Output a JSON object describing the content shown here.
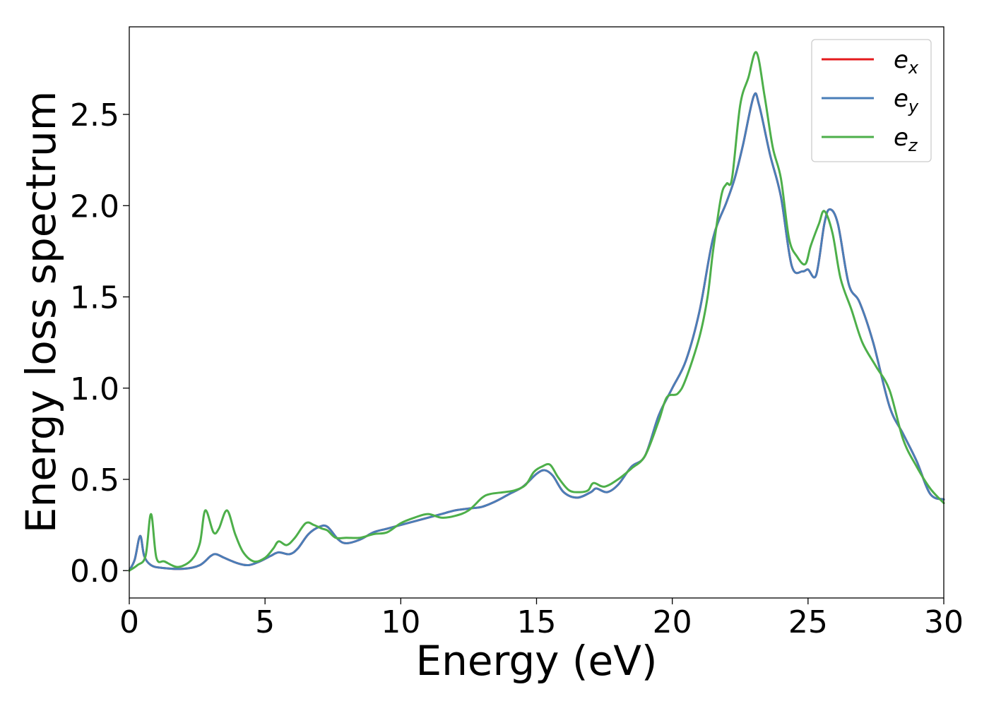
{
  "chart_data": {
    "type": "line",
    "title": "",
    "xlabel": "Energy (eV)",
    "ylabel": "Energy loss spectrum",
    "xlim": [
      0,
      30
    ],
    "ylim": [
      -0.15,
      2.98
    ],
    "x_ticks": [
      0,
      5,
      10,
      15,
      20,
      25,
      30
    ],
    "x_tick_labels": [
      "0",
      "5",
      "10",
      "15",
      "20",
      "25",
      "30"
    ],
    "y_ticks": [
      0.0,
      0.5,
      1.0,
      1.5,
      2.0,
      2.5
    ],
    "y_tick_labels": [
      "0.0",
      "0.5",
      "1.0",
      "1.5",
      "2.0",
      "2.5"
    ],
    "grid": false,
    "legend_position": "top-right",
    "series": [
      {
        "name": "e_x",
        "legend_base": "e",
        "legend_sub": "x",
        "color": "#e41a1c",
        "points": [
          [
            0,
            0.0
          ],
          [
            0.2,
            0.06
          ],
          [
            0.4,
            0.19
          ],
          [
            0.55,
            0.08
          ],
          [
            0.8,
            0.03
          ],
          [
            1.2,
            0.015
          ],
          [
            2.0,
            0.01
          ],
          [
            2.6,
            0.03
          ],
          [
            3.0,
            0.08
          ],
          [
            3.2,
            0.09
          ],
          [
            3.5,
            0.07
          ],
          [
            4.0,
            0.04
          ],
          [
            4.4,
            0.03
          ],
          [
            4.8,
            0.05
          ],
          [
            5.2,
            0.08
          ],
          [
            5.5,
            0.1
          ],
          [
            5.9,
            0.09
          ],
          [
            6.2,
            0.12
          ],
          [
            6.6,
            0.2
          ],
          [
            7.0,
            0.24
          ],
          [
            7.3,
            0.24
          ],
          [
            7.7,
            0.17
          ],
          [
            8.0,
            0.15
          ],
          [
            8.5,
            0.17
          ],
          [
            9.0,
            0.21
          ],
          [
            9.5,
            0.23
          ],
          [
            10.0,
            0.25
          ],
          [
            10.5,
            0.27
          ],
          [
            11.0,
            0.29
          ],
          [
            11.5,
            0.31
          ],
          [
            12.0,
            0.33
          ],
          [
            12.5,
            0.34
          ],
          [
            13.0,
            0.35
          ],
          [
            13.5,
            0.38
          ],
          [
            14.0,
            0.42
          ],
          [
            14.5,
            0.46
          ],
          [
            15.0,
            0.53
          ],
          [
            15.3,
            0.55
          ],
          [
            15.6,
            0.52
          ],
          [
            16.0,
            0.43
          ],
          [
            16.5,
            0.4
          ],
          [
            17.0,
            0.43
          ],
          [
            17.2,
            0.45
          ],
          [
            17.6,
            0.43
          ],
          [
            18.0,
            0.47
          ],
          [
            18.5,
            0.57
          ],
          [
            19.0,
            0.63
          ],
          [
            19.5,
            0.85
          ],
          [
            20.0,
            1.0
          ],
          [
            20.5,
            1.15
          ],
          [
            21.0,
            1.42
          ],
          [
            21.5,
            1.82
          ],
          [
            22.0,
            2.02
          ],
          [
            22.3,
            2.15
          ],
          [
            22.6,
            2.33
          ],
          [
            23.0,
            2.6
          ],
          [
            23.2,
            2.55
          ],
          [
            23.6,
            2.28
          ],
          [
            24.0,
            2.05
          ],
          [
            24.4,
            1.67
          ],
          [
            24.8,
            1.64
          ],
          [
            25.0,
            1.65
          ],
          [
            25.3,
            1.62
          ],
          [
            25.6,
            1.9
          ],
          [
            25.8,
            1.98
          ],
          [
            26.1,
            1.9
          ],
          [
            26.5,
            1.57
          ],
          [
            26.9,
            1.47
          ],
          [
            27.4,
            1.25
          ],
          [
            28.0,
            0.9
          ],
          [
            28.5,
            0.75
          ],
          [
            29.0,
            0.6
          ],
          [
            29.5,
            0.42
          ],
          [
            30.0,
            0.39
          ]
        ]
      },
      {
        "name": "e_y",
        "legend_base": "e",
        "legend_sub": "y",
        "color": "#4a7eb8",
        "points": [
          [
            0,
            0.0
          ],
          [
            0.2,
            0.06
          ],
          [
            0.4,
            0.19
          ],
          [
            0.55,
            0.08
          ],
          [
            0.8,
            0.03
          ],
          [
            1.2,
            0.015
          ],
          [
            2.0,
            0.01
          ],
          [
            2.6,
            0.03
          ],
          [
            3.0,
            0.08
          ],
          [
            3.2,
            0.09
          ],
          [
            3.5,
            0.07
          ],
          [
            4.0,
            0.04
          ],
          [
            4.4,
            0.03
          ],
          [
            4.8,
            0.05
          ],
          [
            5.2,
            0.08
          ],
          [
            5.5,
            0.1
          ],
          [
            5.9,
            0.09
          ],
          [
            6.2,
            0.12
          ],
          [
            6.6,
            0.2
          ],
          [
            7.0,
            0.24
          ],
          [
            7.3,
            0.24
          ],
          [
            7.7,
            0.17
          ],
          [
            8.0,
            0.15
          ],
          [
            8.5,
            0.17
          ],
          [
            9.0,
            0.21
          ],
          [
            9.5,
            0.23
          ],
          [
            10.0,
            0.25
          ],
          [
            10.5,
            0.27
          ],
          [
            11.0,
            0.29
          ],
          [
            11.5,
            0.31
          ],
          [
            12.0,
            0.33
          ],
          [
            12.5,
            0.34
          ],
          [
            13.0,
            0.35
          ],
          [
            13.5,
            0.38
          ],
          [
            14.0,
            0.42
          ],
          [
            14.5,
            0.46
          ],
          [
            15.0,
            0.53
          ],
          [
            15.3,
            0.55
          ],
          [
            15.6,
            0.52
          ],
          [
            16.0,
            0.43
          ],
          [
            16.5,
            0.4
          ],
          [
            17.0,
            0.43
          ],
          [
            17.2,
            0.45
          ],
          [
            17.6,
            0.43
          ],
          [
            18.0,
            0.47
          ],
          [
            18.5,
            0.57
          ],
          [
            19.0,
            0.63
          ],
          [
            19.5,
            0.85
          ],
          [
            20.0,
            1.0
          ],
          [
            20.5,
            1.15
          ],
          [
            21.0,
            1.42
          ],
          [
            21.5,
            1.82
          ],
          [
            22.0,
            2.02
          ],
          [
            22.3,
            2.15
          ],
          [
            22.6,
            2.33
          ],
          [
            23.0,
            2.6
          ],
          [
            23.2,
            2.55
          ],
          [
            23.6,
            2.28
          ],
          [
            24.0,
            2.05
          ],
          [
            24.4,
            1.67
          ],
          [
            24.8,
            1.64
          ],
          [
            25.0,
            1.65
          ],
          [
            25.3,
            1.62
          ],
          [
            25.6,
            1.9
          ],
          [
            25.8,
            1.98
          ],
          [
            26.1,
            1.9
          ],
          [
            26.5,
            1.57
          ],
          [
            26.9,
            1.47
          ],
          [
            27.4,
            1.25
          ],
          [
            28.0,
            0.9
          ],
          [
            28.5,
            0.75
          ],
          [
            29.0,
            0.6
          ],
          [
            29.5,
            0.42
          ],
          [
            30.0,
            0.39
          ]
        ]
      },
      {
        "name": "e_z",
        "legend_base": "e",
        "legend_sub": "z",
        "color": "#4daf4a",
        "points": [
          [
            0,
            0.0
          ],
          [
            0.3,
            0.03
          ],
          [
            0.6,
            0.08
          ],
          [
            0.8,
            0.31
          ],
          [
            1.0,
            0.07
          ],
          [
            1.3,
            0.05
          ],
          [
            1.8,
            0.02
          ],
          [
            2.3,
            0.06
          ],
          [
            2.6,
            0.15
          ],
          [
            2.8,
            0.33
          ],
          [
            3.1,
            0.21
          ],
          [
            3.3,
            0.23
          ],
          [
            3.6,
            0.33
          ],
          [
            3.9,
            0.2
          ],
          [
            4.2,
            0.1
          ],
          [
            4.6,
            0.05
          ],
          [
            5.0,
            0.07
          ],
          [
            5.3,
            0.12
          ],
          [
            5.5,
            0.16
          ],
          [
            5.8,
            0.14
          ],
          [
            6.1,
            0.18
          ],
          [
            6.5,
            0.26
          ],
          [
            6.8,
            0.25
          ],
          [
            7.1,
            0.23
          ],
          [
            7.3,
            0.22
          ],
          [
            7.6,
            0.18
          ],
          [
            8.0,
            0.18
          ],
          [
            8.5,
            0.18
          ],
          [
            9.0,
            0.2
          ],
          [
            9.5,
            0.21
          ],
          [
            10.0,
            0.26
          ],
          [
            10.5,
            0.29
          ],
          [
            11.0,
            0.31
          ],
          [
            11.5,
            0.29
          ],
          [
            12.0,
            0.3
          ],
          [
            12.5,
            0.33
          ],
          [
            13.0,
            0.4
          ],
          [
            13.3,
            0.42
          ],
          [
            13.8,
            0.43
          ],
          [
            14.2,
            0.44
          ],
          [
            14.6,
            0.47
          ],
          [
            14.9,
            0.54
          ],
          [
            15.2,
            0.57
          ],
          [
            15.5,
            0.58
          ],
          [
            15.8,
            0.51
          ],
          [
            16.2,
            0.44
          ],
          [
            16.6,
            0.43
          ],
          [
            16.9,
            0.44
          ],
          [
            17.1,
            0.48
          ],
          [
            17.5,
            0.46
          ],
          [
            18.0,
            0.5
          ],
          [
            18.5,
            0.56
          ],
          [
            19.0,
            0.63
          ],
          [
            19.5,
            0.82
          ],
          [
            19.8,
            0.95
          ],
          [
            20.2,
            0.97
          ],
          [
            20.5,
            1.05
          ],
          [
            21.0,
            1.28
          ],
          [
            21.3,
            1.5
          ],
          [
            21.5,
            1.75
          ],
          [
            21.8,
            2.05
          ],
          [
            22.0,
            2.12
          ],
          [
            22.2,
            2.15
          ],
          [
            22.5,
            2.55
          ],
          [
            22.8,
            2.7
          ],
          [
            23.1,
            2.84
          ],
          [
            23.4,
            2.6
          ],
          [
            23.7,
            2.32
          ],
          [
            24.0,
            2.15
          ],
          [
            24.3,
            1.82
          ],
          [
            24.6,
            1.72
          ],
          [
            24.9,
            1.68
          ],
          [
            25.1,
            1.78
          ],
          [
            25.4,
            1.9
          ],
          [
            25.6,
            1.97
          ],
          [
            25.9,
            1.85
          ],
          [
            26.2,
            1.6
          ],
          [
            26.6,
            1.43
          ],
          [
            27.0,
            1.25
          ],
          [
            27.5,
            1.12
          ],
          [
            28.0,
            0.99
          ],
          [
            28.5,
            0.72
          ],
          [
            29.0,
            0.57
          ],
          [
            29.5,
            0.45
          ],
          [
            30.0,
            0.37
          ]
        ]
      }
    ]
  }
}
